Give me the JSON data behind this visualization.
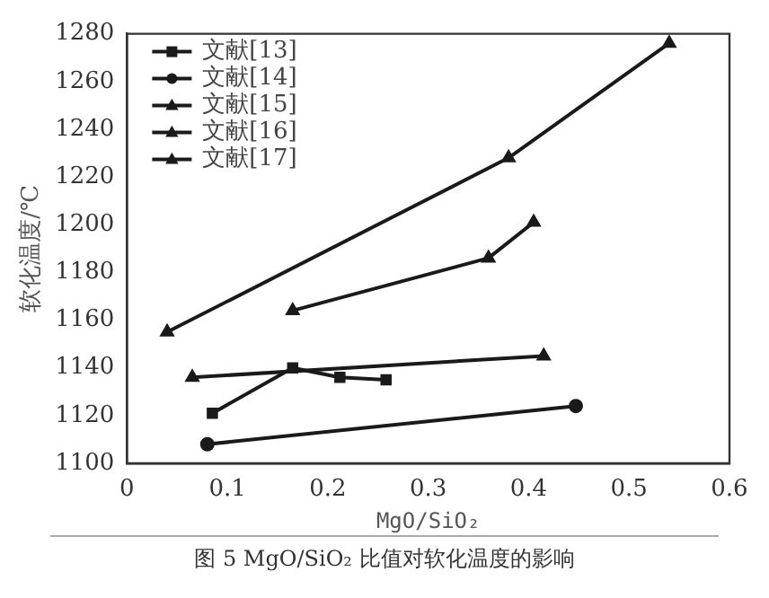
{
  "chart_data": {
    "type": "line",
    "xlabel": "MgO/SiO₂",
    "ylabel": "软化温度/℃",
    "annotations": [
      "图 5  MgO/SiO₂ 比值对软化温度的影响"
    ],
    "series": [
      {
        "name": "文献[13]",
        "color": "#1a1a1a",
        "marker": "square",
        "x": [
          0.085,
          0.165,
          0.212,
          0.258
        ],
        "values": [
          1121,
          1140,
          1136,
          1135
        ]
      },
      {
        "name": "文献[14]",
        "color": "#1a1a1a",
        "marker": "circle",
        "x": [
          0.08,
          0.447
        ],
        "values": [
          1108,
          1124
        ]
      },
      {
        "name": "文献[15]",
        "color": "#1a1a1a",
        "marker": "triangle",
        "x": [
          0.04,
          0.38,
          0.54
        ],
        "values": [
          1155,
          1228,
          1276
        ]
      },
      {
        "name": "文献[16]",
        "color": "#1a1a1a",
        "marker": "triangle",
        "x": [
          0.065,
          0.415
        ],
        "values": [
          1136,
          1145
        ]
      },
      {
        "name": "文献[17]",
        "color": "#1a1a1a",
        "marker": "triangle",
        "x": [
          0.165,
          0.36,
          0.405
        ],
        "values": [
          1164,
          1186,
          1201
        ]
      }
    ],
    "xlim": [
      0,
      0.6
    ],
    "xticks": [
      0,
      0.1,
      0.2,
      0.3,
      0.4,
      0.5,
      0.6
    ],
    "ylim": [
      1100,
      1280
    ],
    "yticks": [
      1100,
      1120,
      1140,
      1160,
      1180,
      1200,
      1220,
      1240,
      1260,
      1280
    ],
    "grid": false,
    "legend": "top left",
    "line_style": "solid"
  }
}
